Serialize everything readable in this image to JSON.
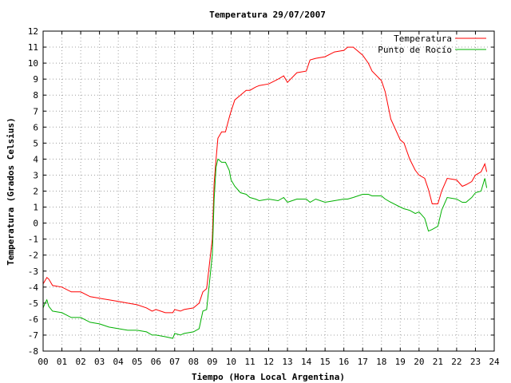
{
  "chart_data": {
    "type": "line",
    "title": "Temperatura 29/07/2007",
    "xlabel": "Tiempo (Hora Local Argentina)",
    "ylabel": "Temperatura (Grados Celsius)",
    "xlim": [
      0,
      24
    ],
    "ylim": [
      -8,
      12
    ],
    "x_ticks": [
      "00",
      "01",
      "02",
      "03",
      "04",
      "05",
      "06",
      "07",
      "08",
      "09",
      "10",
      "11",
      "12",
      "13",
      "14",
      "15",
      "16",
      "17",
      "18",
      "19",
      "20",
      "21",
      "22",
      "23",
      "24"
    ],
    "y_ticks": [
      -8,
      -7,
      -6,
      -5,
      -4,
      -3,
      -2,
      -1,
      0,
      1,
      2,
      3,
      4,
      5,
      6,
      7,
      8,
      9,
      10,
      11,
      12
    ],
    "grid": true,
    "legend_position": "top-right",
    "series": [
      {
        "name": "Temperatura",
        "color": "#ff0000",
        "x": [
          0,
          0.1,
          0.2,
          0.3,
          0.5,
          1.0,
          1.5,
          2.0,
          2.5,
          3.0,
          3.5,
          4.0,
          4.5,
          5.0,
          5.5,
          5.8,
          6.0,
          6.5,
          6.9,
          7.0,
          7.3,
          7.5,
          8.0,
          8.3,
          8.5,
          8.7,
          9.0,
          9.1,
          9.2,
          9.3,
          9.5,
          9.7,
          9.9,
          10.0,
          10.2,
          10.5,
          10.8,
          11.0,
          11.3,
          11.5,
          12.0,
          12.5,
          12.8,
          13.0,
          13.5,
          14.0,
          14.2,
          14.5,
          15.0,
          15.5,
          16.0,
          16.2,
          16.5,
          17.0,
          17.3,
          17.5,
          18.0,
          18.2,
          18.5,
          19.0,
          19.2,
          19.5,
          19.8,
          20.0,
          20.3,
          20.5,
          20.7,
          21.0,
          21.2,
          21.5,
          22.0,
          22.3,
          22.5,
          22.8,
          23.0,
          23.3,
          23.5,
          23.6
        ],
        "y": [
          -3.8,
          -3.6,
          -3.4,
          -3.5,
          -3.9,
          -4.0,
          -4.3,
          -4.3,
          -4.6,
          -4.7,
          -4.8,
          -4.9,
          -5.0,
          -5.1,
          -5.3,
          -5.5,
          -5.4,
          -5.6,
          -5.6,
          -5.4,
          -5.5,
          -5.4,
          -5.3,
          -5.0,
          -4.3,
          -4.1,
          -1.0,
          2.5,
          4.0,
          5.3,
          5.7,
          5.7,
          6.6,
          7.0,
          7.7,
          8.0,
          8.3,
          8.3,
          8.5,
          8.6,
          8.7,
          9.0,
          9.2,
          8.8,
          9.4,
          9.5,
          10.2,
          10.3,
          10.4,
          10.7,
          10.8,
          11.0,
          11.0,
          10.5,
          10.0,
          9.5,
          8.9,
          8.2,
          6.5,
          5.2,
          5.0,
          4.0,
          3.3,
          3.0,
          2.8,
          2.1,
          1.2,
          1.2,
          2.0,
          2.8,
          2.7,
          2.3,
          2.4,
          2.6,
          3.0,
          3.2,
          3.7,
          3.2
        ]
      },
      {
        "name": "Punto de Rocío",
        "color": "#00b000",
        "x": [
          0,
          0.1,
          0.2,
          0.3,
          0.5,
          1.0,
          1.5,
          2.0,
          2.5,
          3.0,
          3.5,
          4.0,
          4.5,
          5.0,
          5.5,
          5.8,
          6.0,
          6.5,
          6.9,
          7.0,
          7.3,
          7.5,
          8.0,
          8.3,
          8.5,
          8.7,
          9.0,
          9.1,
          9.2,
          9.3,
          9.5,
          9.7,
          9.9,
          10.0,
          10.2,
          10.5,
          10.8,
          11.0,
          11.3,
          11.5,
          12.0,
          12.5,
          12.8,
          13.0,
          13.5,
          14.0,
          14.2,
          14.5,
          15.0,
          15.5,
          16.0,
          16.2,
          16.5,
          17.0,
          17.3,
          17.5,
          18.0,
          18.2,
          18.5,
          19.0,
          19.2,
          19.5,
          19.8,
          20.0,
          20.3,
          20.5,
          20.7,
          21.0,
          21.2,
          21.5,
          22.0,
          22.3,
          22.5,
          22.8,
          23.0,
          23.3,
          23.5,
          23.6
        ],
        "y": [
          -5.3,
          -5.0,
          -4.8,
          -5.2,
          -5.5,
          -5.6,
          -5.9,
          -5.9,
          -6.2,
          -6.3,
          -6.5,
          -6.6,
          -6.7,
          -6.7,
          -6.8,
          -7.0,
          -7.0,
          -7.1,
          -7.2,
          -6.9,
          -7.0,
          -6.9,
          -6.8,
          -6.6,
          -5.5,
          -5.4,
          -2.0,
          1.5,
          3.5,
          4.0,
          3.8,
          3.8,
          3.3,
          2.7,
          2.3,
          1.9,
          1.8,
          1.6,
          1.5,
          1.4,
          1.5,
          1.4,
          1.6,
          1.3,
          1.5,
          1.5,
          1.3,
          1.5,
          1.3,
          1.4,
          1.5,
          1.5,
          1.6,
          1.8,
          1.8,
          1.7,
          1.7,
          1.5,
          1.3,
          1.0,
          0.9,
          0.8,
          0.6,
          0.7,
          0.3,
          -0.5,
          -0.4,
          -0.2,
          0.8,
          1.6,
          1.5,
          1.3,
          1.3,
          1.6,
          1.9,
          2.0,
          2.8,
          2.2
        ]
      }
    ]
  }
}
